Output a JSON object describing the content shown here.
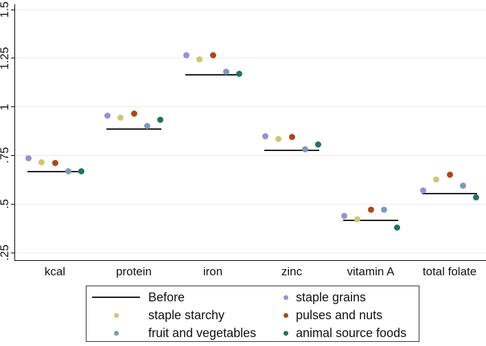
{
  "chart_data": {
    "type": "scatter",
    "title": "",
    "xlabel": "",
    "ylabel": "",
    "categories": [
      "kcal",
      "protein",
      "iron",
      "zinc",
      "vitamin A",
      "total folate"
    ],
    "y_ticks": [
      {
        "label": ".25",
        "value": 0.25
      },
      {
        "label": ".5",
        "value": 0.5
      },
      {
        "label": ".75",
        "value": 0.75
      },
      {
        "label": "1",
        "value": 1.0
      },
      {
        "label": "1.25",
        "value": 1.25
      },
      {
        "label": "1.5",
        "value": 1.5
      }
    ],
    "ylim": [
      0.25,
      1.5
    ],
    "grid": true,
    "before": {
      "label": "Before",
      "color": "#1a1a1a",
      "values": [
        0.665,
        0.885,
        1.165,
        0.775,
        0.415,
        0.555
      ]
    },
    "series": [
      {
        "name": "staple grains",
        "color": "#9c8fd1",
        "values": [
          0.735,
          0.955,
          1.265,
          0.85,
          0.44,
          0.57
        ]
      },
      {
        "name": "staple starchy",
        "color": "#d2c575",
        "values": [
          0.715,
          0.945,
          1.245,
          0.835,
          0.42,
          0.625
        ]
      },
      {
        "name": "pulses and nuts",
        "color": "#ac4818",
        "values": [
          0.71,
          0.965,
          1.265,
          0.845,
          0.47,
          0.65
        ]
      },
      {
        "name": "fruit and vegetables",
        "color": "#8097bd",
        "values": [
          0.67,
          0.9,
          1.18,
          0.78,
          0.47,
          0.595
        ]
      },
      {
        "name": "animal source foods",
        "color": "#1e7662",
        "values": [
          0.67,
          0.935,
          1.17,
          0.805,
          0.38,
          0.535
        ]
      }
    ],
    "legend_position": "bottom"
  },
  "legend": {
    "columns": [
      {
        "entries": [
          {
            "symbol": "line",
            "label": "Before"
          },
          {
            "symbol": "dot",
            "series": "staple starchy",
            "label": "staple starchy"
          },
          {
            "symbol": "dot",
            "series": "fruit and vegetables",
            "label": "fruit and vegetables"
          }
        ]
      },
      {
        "entries": [
          {
            "symbol": "dot",
            "series": "staple grains",
            "label": "staple grains"
          },
          {
            "symbol": "dot",
            "series": "pulses and nuts",
            "label": "pulses and nuts"
          },
          {
            "symbol": "dot",
            "series": "animal source foods",
            "label": "animal source foods"
          }
        ]
      }
    ]
  }
}
